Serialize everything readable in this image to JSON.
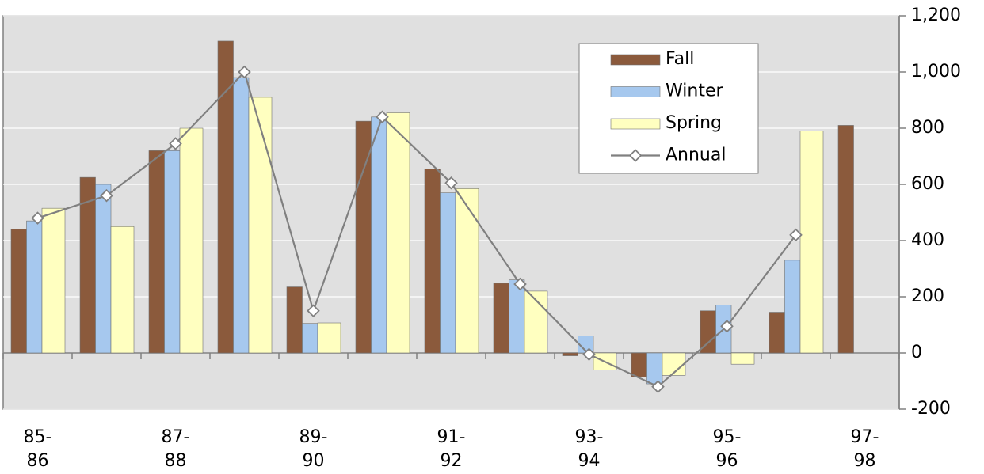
{
  "chart_data": {
    "type": "bar-line",
    "categories": [
      "85-\n86",
      null,
      "87-\n88",
      null,
      "89-\n90",
      null,
      "91-\n92",
      null,
      "93-\n94",
      null,
      "95-\n96",
      null,
      "97-\n98"
    ],
    "series": [
      {
        "name": "Fall",
        "type": "bar",
        "color": "#8b5a3c",
        "values": [
          440,
          625,
          720,
          1110,
          235,
          825,
          655,
          248,
          -10,
          -85,
          150,
          145,
          810
        ]
      },
      {
        "name": "Winter",
        "type": "bar",
        "color": "#a6c8ee",
        "values": [
          470,
          600,
          720,
          980,
          105,
          840,
          570,
          260,
          60,
          -110,
          170,
          330,
          null
        ]
      },
      {
        "name": "Spring",
        "type": "bar",
        "color": "#ffffc0",
        "values": [
          515,
          450,
          800,
          910,
          107,
          855,
          585,
          220,
          -60,
          -80,
          -40,
          790,
          null
        ]
      },
      {
        "name": "Annual",
        "type": "line",
        "color": "#808080",
        "values": [
          480,
          560,
          745,
          1000,
          150,
          840,
          605,
          245,
          -5,
          -120,
          95,
          420,
          null
        ]
      }
    ],
    "ylim": [
      -200,
      1200
    ],
    "yticks": [
      -200,
      0,
      200,
      400,
      600,
      800,
      {
        "value": 1000,
        "label": "1,000"
      },
      {
        "value": 1200,
        "label": "1,200"
      }
    ],
    "grid": true,
    "legend": "top-right"
  }
}
